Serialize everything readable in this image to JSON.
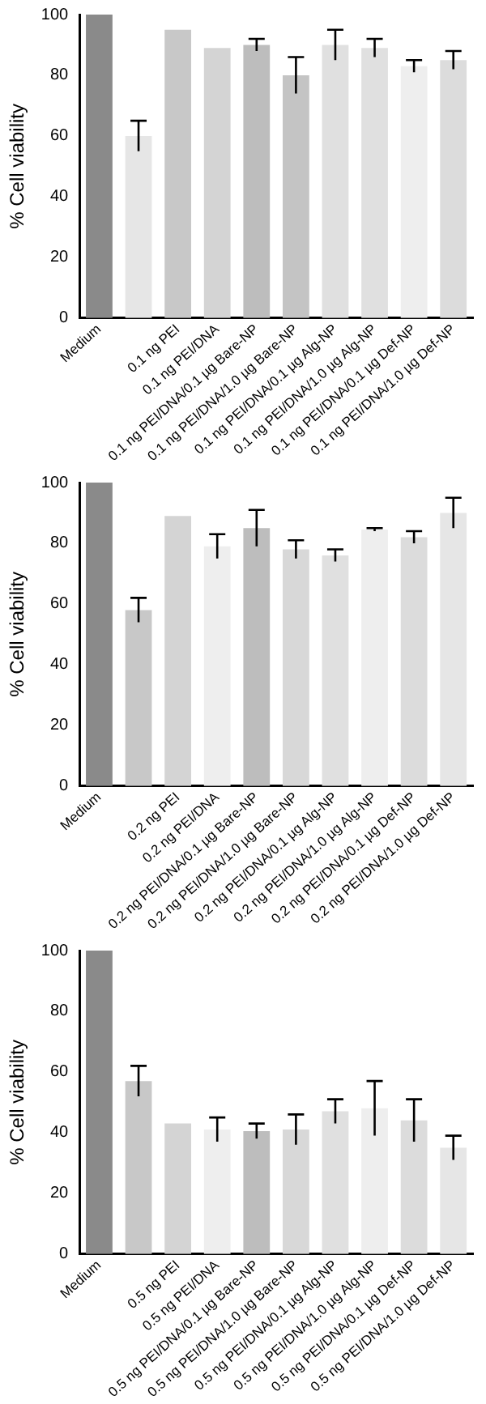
{
  "chart_data": [
    {
      "type": "bar",
      "ylabel": "% Cell viability",
      "categories": [
        "Medium",
        null,
        "0.1 ng PEI",
        "0.1 ng PEI/DNA",
        "0.1 ng PEI/DNA/0.1 µg Bare-NP",
        "0.1 ng PEI/DNA/1.0 µg Bare-NP",
        "0.1 ng PEI/DNA/0.1 µg Alg-NP",
        "0.1 ng PEI/DNA/1.0 µg Alg-NP",
        "0.1 ng PEI/DNA/0.1 µg Def-NP",
        "0.1 ng PEI/DNA/1.0 µg Def-NP"
      ],
      "values": [
        100,
        60,
        95,
        89,
        90,
        80,
        90,
        89,
        83,
        85
      ],
      "errors": [
        null,
        5,
        null,
        null,
        2,
        6,
        5,
        3,
        2,
        3
      ],
      "colors": [
        "#8a8a8a",
        "#e6e6e6",
        "#c8c8c8",
        "#d4d4d4",
        "#bdbdbd",
        "#c4c4c4",
        "#e0e0e0",
        "#e0e0e0",
        "#eeeeee",
        "#dcdcdc"
      ],
      "ylim": [
        0,
        100
      ],
      "yticks": [
        0,
        20,
        40,
        60,
        80,
        100
      ],
      "grid": false,
      "legend": false
    },
    {
      "type": "bar",
      "ylabel": "% Cell viability",
      "categories": [
        "Medium",
        null,
        "0.2 ng PEI",
        "0.2 ng PEI/DNA",
        "0.2 ng PEI/DNA/0.1 µg Bare-NP",
        "0.2 ng PEI/DNA/1.0 µg Bare-NP",
        "0.2 ng PEI/DNA/0.1 µg Alg-NP",
        "0.2 ng PEI/DNA/1.0 µg Alg-NP",
        "0.2 ng PEI/DNA/0.1 µg Def-NP",
        "0.2 ng PEI/DNA/1.0 µg Def-NP"
      ],
      "values": [
        100,
        58,
        89,
        79,
        85,
        78,
        76,
        84.5,
        82,
        90
      ],
      "errors": [
        null,
        4,
        null,
        4,
        6,
        3,
        2,
        0.5,
        2,
        5
      ],
      "colors": [
        "#8a8a8a",
        "#c8c8c8",
        "#d4d4d4",
        "#eeeeee",
        "#bdbdbd",
        "#d8d8d8",
        "#e0e0e0",
        "#eeeeee",
        "#dcdcdc",
        "#e6e6e6"
      ],
      "ylim": [
        0,
        100
      ],
      "yticks": [
        0,
        20,
        40,
        60,
        80,
        100
      ],
      "grid": false,
      "legend": false
    },
    {
      "type": "bar",
      "ylabel": "% Cell viability",
      "categories": [
        "Medium",
        null,
        "0.5 ng PEI",
        "0.5 ng PEI/DNA",
        "0.5 ng PEI/DNA/0.1 µg Bare-NP",
        "0.5 ng PEI/DNA/1.0 µg Bare-NP",
        "0.5 ng PEI/DNA/0.1 µg Alg-NP",
        "0.5 ng PEI/DNA/1.0 µg Alg-NP",
        "0.5 ng PEI/DNA/0.1 µg Def-NP",
        "0.5 ng PEI/DNA/1.0 µg Def-NP"
      ],
      "values": [
        100,
        57,
        43,
        41,
        40.5,
        41,
        47,
        48,
        44,
        35
      ],
      "errors": [
        null,
        5,
        null,
        4,
        2.5,
        5,
        4,
        9,
        7,
        4
      ],
      "colors": [
        "#8a8a8a",
        "#c8c8c8",
        "#d4d4d4",
        "#eeeeee",
        "#bdbdbd",
        "#d8d8d8",
        "#e0e0e0",
        "#eeeeee",
        "#dcdcdc",
        "#e6e6e6"
      ],
      "ylim": [
        0,
        100
      ],
      "yticks": [
        0,
        20,
        40,
        60,
        80,
        100
      ],
      "grid": false,
      "legend": false
    }
  ]
}
